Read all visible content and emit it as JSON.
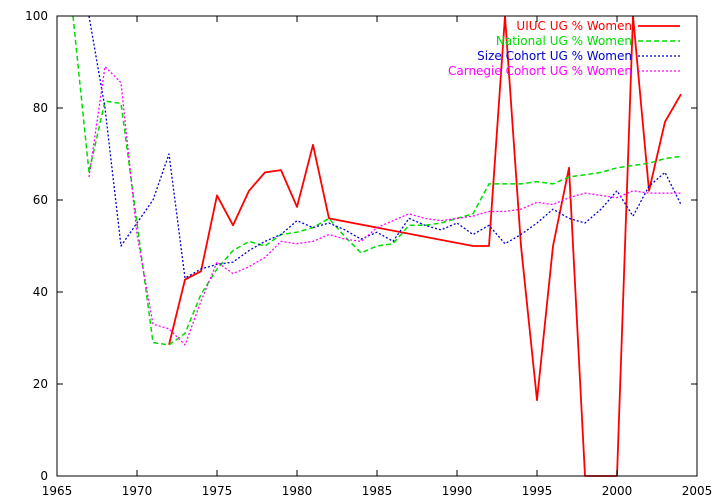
{
  "chart_data": {
    "type": "line",
    "xlim": [
      1965,
      2005
    ],
    "ylim": [
      0,
      100
    ],
    "xticks": [
      1965,
      1970,
      1975,
      1980,
      1985,
      1990,
      1995,
      2000,
      2005
    ],
    "yticks": [
      0,
      20,
      40,
      60,
      80,
      100
    ],
    "grid": false,
    "legend_position": "top-right",
    "series": [
      {
        "name": "UIUC UG % Women",
        "color": "#ff0000",
        "dash": "solid",
        "points": [
          [
            1972,
            28.5
          ],
          [
            1973,
            42.7
          ],
          [
            1974,
            44.5
          ],
          [
            1975,
            61.0
          ],
          [
            1976,
            54.5
          ],
          [
            1977,
            62.0
          ],
          [
            1978,
            66.0
          ],
          [
            1979,
            66.5
          ],
          [
            1980,
            58.5
          ],
          [
            1981,
            72.0
          ],
          [
            1982,
            56.0
          ],
          [
            1991,
            50.0
          ],
          [
            1992,
            50.0
          ],
          [
            1993,
            100.0
          ],
          [
            1994,
            50.0
          ],
          [
            1995,
            16.5
          ],
          [
            1996,
            50.0
          ],
          [
            1997,
            67.0
          ],
          [
            1998,
            0.0
          ],
          [
            1999,
            0.0
          ],
          [
            2000,
            0.0
          ],
          [
            2001,
            100.0
          ],
          [
            2002,
            62.0
          ],
          [
            2003,
            77.0
          ],
          [
            2004,
            83.0
          ]
        ]
      },
      {
        "name": "National UG % Women",
        "color": "#00dd00",
        "dash": "dashed",
        "points": [
          [
            1966,
            100.0
          ],
          [
            1967,
            66.0
          ],
          [
            1968,
            81.5
          ],
          [
            1969,
            81.0
          ],
          [
            1970,
            55.0
          ],
          [
            1971,
            29.0
          ],
          [
            1972,
            28.5
          ],
          [
            1973,
            31.0
          ],
          [
            1974,
            39.5
          ],
          [
            1975,
            45.0
          ],
          [
            1976,
            49.0
          ],
          [
            1977,
            51.0
          ],
          [
            1978,
            50.0
          ],
          [
            1979,
            52.5
          ],
          [
            1980,
            53.0
          ],
          [
            1981,
            54.0
          ],
          [
            1982,
            56.0
          ],
          [
            1983,
            52.0
          ],
          [
            1984,
            48.5
          ],
          [
            1985,
            50.0
          ],
          [
            1986,
            50.5
          ],
          [
            1987,
            54.5
          ],
          [
            1988,
            54.5
          ],
          [
            1989,
            55.0
          ],
          [
            1990,
            56.0
          ],
          [
            1991,
            57.0
          ],
          [
            1992,
            63.5
          ],
          [
            1993,
            63.5
          ],
          [
            1994,
            63.5
          ],
          [
            1995,
            64.0
          ],
          [
            1996,
            63.5
          ],
          [
            1997,
            65.0
          ],
          [
            1998,
            65.5
          ],
          [
            1999,
            66.0
          ],
          [
            2000,
            67.0
          ],
          [
            2001,
            67.5
          ],
          [
            2002,
            68.0
          ],
          [
            2003,
            69.0
          ],
          [
            2004,
            69.5
          ]
        ]
      },
      {
        "name": "Size Cohort UG % Women",
        "color": "#0000cc",
        "dash": "dotted",
        "points": [
          [
            1967,
            100.0
          ],
          [
            1968,
            80.0
          ],
          [
            1969,
            50.0
          ],
          [
            1970,
            55.0
          ],
          [
            1971,
            60.0
          ],
          [
            1972,
            70.0
          ],
          [
            1973,
            43.0
          ],
          [
            1974,
            45.0
          ],
          [
            1975,
            46.0
          ],
          [
            1976,
            46.5
          ],
          [
            1977,
            49.0
          ],
          [
            1978,
            51.0
          ],
          [
            1979,
            52.5
          ],
          [
            1980,
            55.5
          ],
          [
            1981,
            54.0
          ],
          [
            1982,
            55.0
          ],
          [
            1983,
            53.5
          ],
          [
            1984,
            51.5
          ],
          [
            1985,
            53.0
          ],
          [
            1986,
            51.0
          ],
          [
            1987,
            56.0
          ],
          [
            1988,
            54.5
          ],
          [
            1989,
            53.5
          ],
          [
            1990,
            55.0
          ],
          [
            1991,
            52.5
          ],
          [
            1992,
            54.5
          ],
          [
            1993,
            50.5
          ],
          [
            1994,
            52.5
          ],
          [
            1995,
            55.0
          ],
          [
            1996,
            58.0
          ],
          [
            1997,
            56.0
          ],
          [
            1998,
            55.0
          ],
          [
            1999,
            58.0
          ],
          [
            2000,
            62.0
          ],
          [
            2001,
            56.5
          ],
          [
            2002,
            63.0
          ],
          [
            2003,
            66.0
          ],
          [
            2004,
            59.0
          ]
        ]
      },
      {
        "name": "Carnegie Cohort UG % Women",
        "color": "#ff00ff",
        "dash": "dotted",
        "points": [
          [
            1967,
            65.0
          ],
          [
            1968,
            89.0
          ],
          [
            1969,
            85.5
          ],
          [
            1970,
            52.5
          ],
          [
            1971,
            33.0
          ],
          [
            1972,
            32.0
          ],
          [
            1973,
            28.5
          ],
          [
            1974,
            38.0
          ],
          [
            1975,
            46.5
          ],
          [
            1976,
            44.0
          ],
          [
            1977,
            45.5
          ],
          [
            1978,
            47.5
          ],
          [
            1979,
            51.0
          ],
          [
            1980,
            50.5
          ],
          [
            1981,
            51.0
          ],
          [
            1982,
            52.5
          ],
          [
            1983,
            51.5
          ],
          [
            1984,
            51.0
          ],
          [
            1985,
            54.0
          ],
          [
            1986,
            55.5
          ],
          [
            1987,
            57.0
          ],
          [
            1988,
            56.0
          ],
          [
            1989,
            55.5
          ],
          [
            1990,
            56.0
          ],
          [
            1991,
            56.5
          ],
          [
            1992,
            57.5
          ],
          [
            1993,
            57.5
          ],
          [
            1994,
            58.0
          ],
          [
            1995,
            59.5
          ],
          [
            1996,
            59.0
          ],
          [
            1997,
            60.5
          ],
          [
            1998,
            61.5
          ],
          [
            1999,
            61.0
          ],
          [
            2000,
            60.5
          ],
          [
            2001,
            62.0
          ],
          [
            2002,
            61.5
          ],
          [
            2003,
            61.5
          ],
          [
            2004,
            61.5
          ]
        ]
      }
    ]
  }
}
